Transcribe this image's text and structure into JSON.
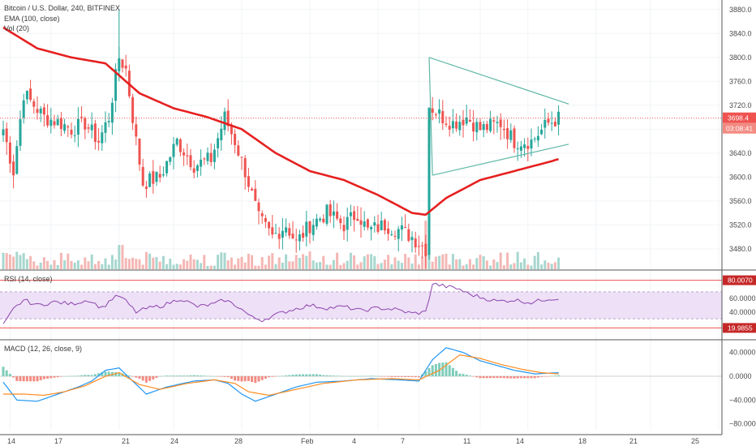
{
  "header": {
    "title": "Bitcoin / U.S. Dollar, 240, BITFINEX",
    "ema_label": "EMA (100, close)",
    "vol_label": "Vol (20)",
    "rsi_label": "RSI (14, close)",
    "macd_label": "MACD (12, 26, close, 9)"
  },
  "price_axis": {
    "ticks": [
      "3880.0",
      "3840.0",
      "3800.0",
      "3760.0",
      "3720.0",
      "3680.0",
      "3640.0",
      "3600.0",
      "3560.0",
      "3520.0",
      "3480.0"
    ],
    "last_price": "3698.4",
    "countdown": "03:08:41"
  },
  "rsi_axis": {
    "ticks": [
      "60.0000",
      "40.0000"
    ],
    "upper_tag": "80.0070",
    "lower_tag": "19.9855"
  },
  "macd_axis": {
    "ticks": [
      "40.0000",
      "0.0000",
      "−40.0000",
      "−80.0000"
    ]
  },
  "time_axis": {
    "labels": [
      "14",
      "17",
      "21",
      "24",
      "28",
      "Feb",
      "4",
      "7",
      "11",
      "14",
      "18",
      "21",
      "25"
    ]
  },
  "colors": {
    "up": "#26a69a",
    "down": "#ef5350",
    "ema": "#e62020",
    "rsi_line": "#8e44ad",
    "rsi_band": "#ede0f7",
    "macd": "#2196f3",
    "signal": "#ff8a1e",
    "triangle": "#5fb8a6"
  },
  "chart_data": {
    "type": "candlestick",
    "symbol": "Bitcoin / U.S. Dollar",
    "interval": "240",
    "exchange": "BITFINEX",
    "ylim": [
      3450,
      3900
    ],
    "anchors": [
      [
        0,
        3680
      ],
      [
        3,
        3610
      ],
      [
        6,
        3740
      ],
      [
        9,
        3720
      ],
      [
        12,
        3700
      ],
      [
        17,
        3690
      ],
      [
        20,
        3680
      ],
      [
        24,
        3690
      ],
      [
        28,
        3660
      ],
      [
        31,
        3700
      ],
      [
        34,
        3800
      ],
      [
        36,
        3780
      ],
      [
        39,
        3660
      ],
      [
        41,
        3590
      ],
      [
        46,
        3600
      ],
      [
        51,
        3660
      ],
      [
        56,
        3620
      ],
      [
        61,
        3630
      ],
      [
        65,
        3700
      ],
      [
        68,
        3660
      ],
      [
        71,
        3610
      ],
      [
        75,
        3530
      ],
      [
        79,
        3500
      ],
      [
        83,
        3520
      ],
      [
        86,
        3490
      ],
      [
        90,
        3520
      ],
      [
        95,
        3540
      ],
      [
        100,
        3520
      ],
      [
        104,
        3540
      ],
      [
        107,
        3510
      ],
      [
        112,
        3520
      ],
      [
        117,
        3510
      ],
      [
        120,
        3500
      ],
      [
        124,
        3480
      ],
      [
        125,
        3720
      ],
      [
        129,
        3700
      ],
      [
        132,
        3690
      ],
      [
        136,
        3700
      ],
      [
        140,
        3680
      ],
      [
        146,
        3690
      ],
      [
        150,
        3660
      ],
      [
        155,
        3660
      ],
      [
        160,
        3690
      ],
      [
        163,
        3698
      ]
    ],
    "ema_100": [
      [
        0,
        3850
      ],
      [
        10,
        3815
      ],
      [
        20,
        3800
      ],
      [
        30,
        3790
      ],
      [
        40,
        3740
      ],
      [
        50,
        3715
      ],
      [
        60,
        3700
      ],
      [
        70,
        3680
      ],
      [
        80,
        3640
      ],
      [
        90,
        3610
      ],
      [
        100,
        3595
      ],
      [
        110,
        3570
      ],
      [
        120,
        3540
      ],
      [
        124,
        3537
      ],
      [
        130,
        3565
      ],
      [
        140,
        3595
      ],
      [
        150,
        3610
      ],
      [
        160,
        3625
      ],
      [
        163,
        3630
      ]
    ],
    "triangle": {
      "apex_left_high": [
        125,
        3800
      ],
      "right_high": [
        166,
        3722
      ],
      "apex_left_low": [
        126,
        3603
      ],
      "right_low": [
        166,
        3655
      ]
    },
    "last_price": 3698.4,
    "rsi_levels": {
      "overbought": 80.007,
      "oversold": 19.9855,
      "band": [
        30,
        70
      ]
    },
    "rsi_path": [
      [
        0,
        20
      ],
      [
        3,
        44
      ],
      [
        6,
        58
      ],
      [
        10,
        50
      ],
      [
        15,
        55
      ],
      [
        20,
        52
      ],
      [
        25,
        58
      ],
      [
        29,
        46
      ],
      [
        32,
        60
      ],
      [
        34,
        64
      ],
      [
        36,
        56
      ],
      [
        39,
        40
      ],
      [
        42,
        45
      ],
      [
        47,
        50
      ],
      [
        52,
        60
      ],
      [
        57,
        48
      ],
      [
        62,
        52
      ],
      [
        65,
        58
      ],
      [
        69,
        48
      ],
      [
        73,
        32
      ],
      [
        76,
        28
      ],
      [
        80,
        36
      ],
      [
        85,
        44
      ],
      [
        90,
        50
      ],
      [
        95,
        46
      ],
      [
        100,
        48
      ],
      [
        105,
        42
      ],
      [
        110,
        46
      ],
      [
        115,
        44
      ],
      [
        120,
        38
      ],
      [
        124,
        40
      ],
      [
        126,
        82
      ],
      [
        130,
        78
      ],
      [
        134,
        74
      ],
      [
        136,
        68
      ],
      [
        140,
        62
      ],
      [
        145,
        56
      ],
      [
        150,
        58
      ],
      [
        155,
        54
      ],
      [
        160,
        60
      ],
      [
        163,
        60
      ]
    ],
    "macd_path": [
      [
        0,
        -10
      ],
      [
        4,
        -40
      ],
      [
        10,
        -42
      ],
      [
        16,
        -30
      ],
      [
        22,
        -18
      ],
      [
        26,
        -8
      ],
      [
        30,
        10
      ],
      [
        34,
        14
      ],
      [
        38,
        -8
      ],
      [
        42,
        -30
      ],
      [
        48,
        -18
      ],
      [
        56,
        -8
      ],
      [
        62,
        -6
      ],
      [
        66,
        -12
      ],
      [
        70,
        -30
      ],
      [
        74,
        -42
      ],
      [
        80,
        -30
      ],
      [
        86,
        -18
      ],
      [
        92,
        -10
      ],
      [
        100,
        -8
      ],
      [
        108,
        -4
      ],
      [
        116,
        -6
      ],
      [
        122,
        -8
      ],
      [
        126,
        28
      ],
      [
        130,
        48
      ],
      [
        135,
        40
      ],
      [
        140,
        26
      ],
      [
        145,
        18
      ],
      [
        150,
        10
      ],
      [
        156,
        4
      ],
      [
        163,
        6
      ]
    ],
    "signal_path": [
      [
        0,
        -30
      ],
      [
        6,
        -30
      ],
      [
        12,
        -32
      ],
      [
        18,
        -26
      ],
      [
        24,
        -16
      ],
      [
        30,
        0
      ],
      [
        34,
        6
      ],
      [
        40,
        -14
      ],
      [
        46,
        -22
      ],
      [
        54,
        -12
      ],
      [
        62,
        -6
      ],
      [
        68,
        -12
      ],
      [
        72,
        -26
      ],
      [
        78,
        -32
      ],
      [
        86,
        -22
      ],
      [
        94,
        -12
      ],
      [
        104,
        -6
      ],
      [
        114,
        -4
      ],
      [
        122,
        -6
      ],
      [
        128,
        10
      ],
      [
        134,
        36
      ],
      [
        140,
        30
      ],
      [
        146,
        20
      ],
      [
        152,
        12
      ],
      [
        158,
        6
      ],
      [
        163,
        4
      ]
    ],
    "macd_range": [
      -90,
      60
    ]
  }
}
